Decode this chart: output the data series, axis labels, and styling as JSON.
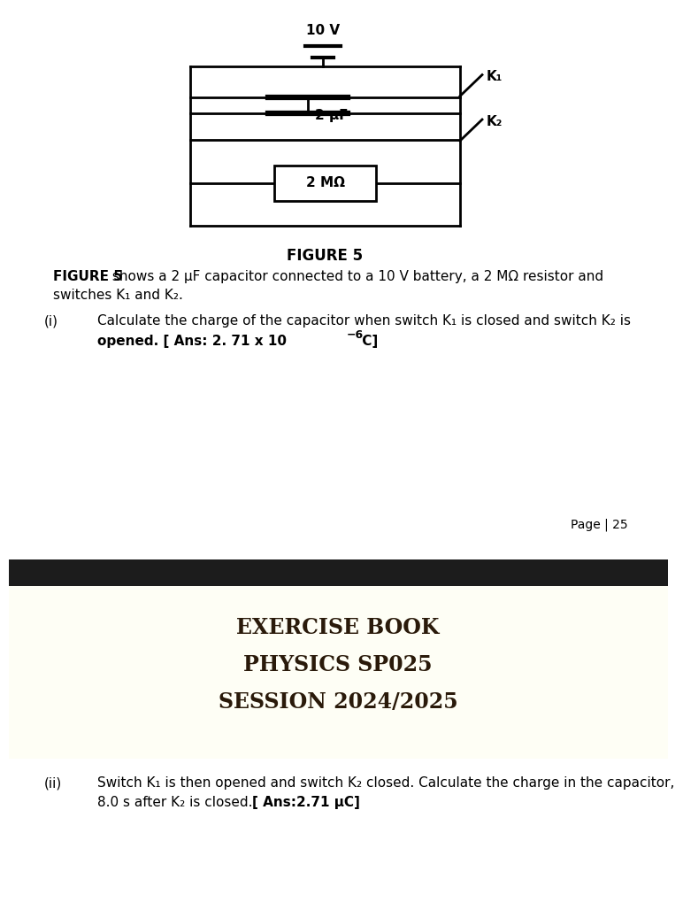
{
  "page_bg": "#ffffff",
  "circuit": {
    "battery_label": "10 V",
    "capacitor_label": "2 μF",
    "resistor_label": "2 MΩ",
    "k1_label": "K₁",
    "k2_label": "K₂"
  },
  "figure_caption": "FIGURE 5",
  "description_bold": "FIGURE 5",
  "description_normal": " shows a 2 μF capacitor connected to a 10 V battery, a 2 MΩ resistor and",
  "description_line2": "switches K₁ and K₂.",
  "part_i_label": "(i)",
  "part_i_text": "Calculate the charge of the capacitor when switch K₁ is closed and switch K₂ is",
  "part_i_ans_prefix": "opened. [ Ans: 2. 71 x 10",
  "part_i_superscript": "−6",
  "part_i_ans_suffix": " C]",
  "page_label": "Page | 25",
  "banner_title1": "EXERCISE BOOK",
  "banner_title2": "PHYSICS SP025",
  "banner_title3": "SESSION 2024/2025",
  "part_ii_label": "(ii)",
  "part_ii_text": "Switch K₁ is then opened and switch K₂ closed. Calculate the charge in the capacitor,",
  "part_ii_text2_normal": "8.0 s after K₂ is closed. ",
  "part_ii_text2_bold": "[ Ans:2.71 μC]"
}
